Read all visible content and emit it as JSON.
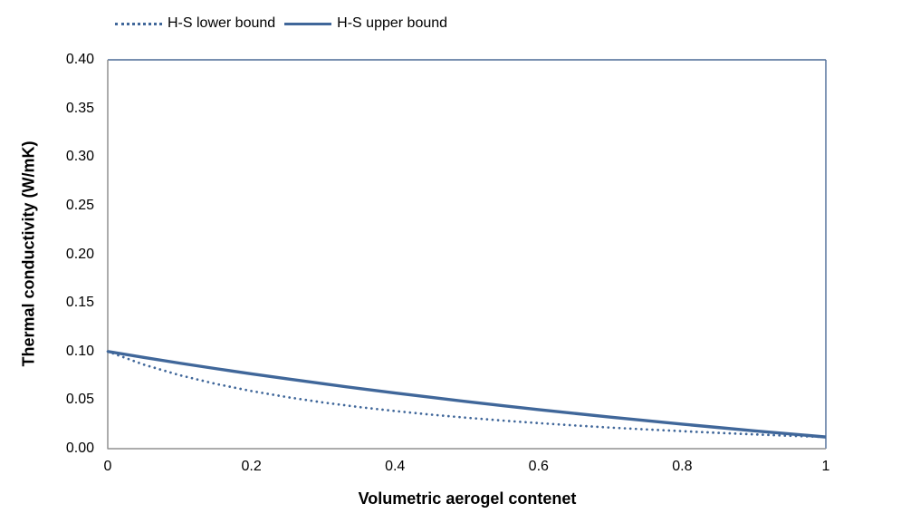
{
  "colors": {
    "series_blue": "#40679A",
    "plot_border": "#4A6A96",
    "axis_gray": "#919191",
    "background": "#ffffff",
    "text": "#000000"
  },
  "chart_data": {
    "type": "line",
    "title": "",
    "xlabel": "Volumetric aerogel contenet",
    "ylabel": "Thermal conductivity (W/mK)",
    "xlim": [
      0,
      1
    ],
    "ylim": [
      0,
      0.4
    ],
    "grid": false,
    "legend_position": "top-left",
    "xticks": [
      {
        "value": 0,
        "label": "0"
      },
      {
        "value": 0.2,
        "label": "0.2"
      },
      {
        "value": 0.4,
        "label": "0.4"
      },
      {
        "value": 0.6,
        "label": "0.6"
      },
      {
        "value": 0.8,
        "label": "0.8"
      },
      {
        "value": 1,
        "label": "1"
      }
    ],
    "yticks": [
      {
        "value": 0.0,
        "label": "0.00"
      },
      {
        "value": 0.05,
        "label": "0.05"
      },
      {
        "value": 0.1,
        "label": "0.10"
      },
      {
        "value": 0.15,
        "label": "0.15"
      },
      {
        "value": 0.2,
        "label": "0.20"
      },
      {
        "value": 0.25,
        "label": "0.25"
      },
      {
        "value": 0.3,
        "label": "0.30"
      },
      {
        "value": 0.35,
        "label": "0.35"
      },
      {
        "value": 0.4,
        "label": "0.40"
      }
    ],
    "x": [
      0,
      0.05,
      0.1,
      0.15,
      0.2,
      0.25,
      0.3,
      0.35,
      0.4,
      0.45,
      0.5,
      0.55,
      0.6,
      0.65,
      0.7,
      0.75,
      0.8,
      0.85,
      0.9,
      0.95,
      1.0
    ],
    "series": [
      {
        "name": "H-S lower bound",
        "style": "dotted",
        "color": "#40679A",
        "values": [
          0.1,
          0.0865,
          0.0756,
          0.0667,
          0.0593,
          0.053,
          0.0475,
          0.0428,
          0.0387,
          0.035,
          0.0318,
          0.0289,
          0.0263,
          0.0239,
          0.0217,
          0.0198,
          0.018,
          0.0163,
          0.0147,
          0.0133,
          0.012
        ]
      },
      {
        "name": "H-S upper bound",
        "style": "solid",
        "color": "#40679A",
        "values": [
          0.1,
          0.0939,
          0.088,
          0.0824,
          0.077,
          0.0718,
          0.0668,
          0.0619,
          0.0573,
          0.0528,
          0.0484,
          0.0442,
          0.0402,
          0.0363,
          0.0325,
          0.0288,
          0.0252,
          0.0218,
          0.0184,
          0.0152,
          0.012
        ]
      }
    ]
  }
}
